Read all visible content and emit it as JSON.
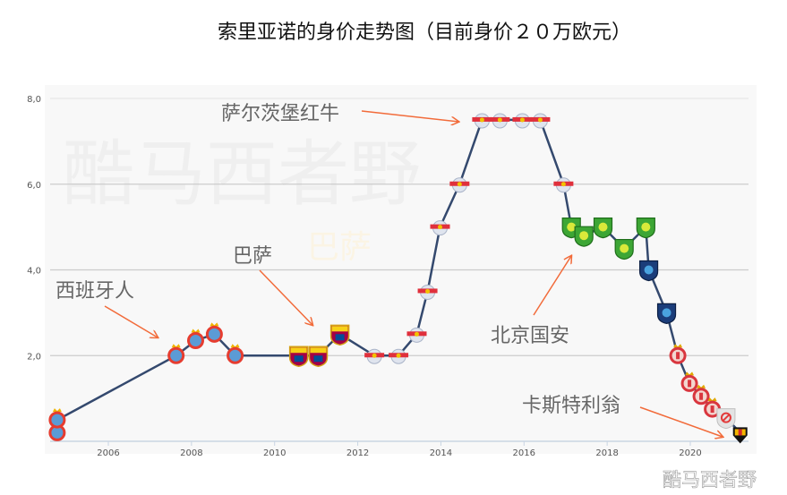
{
  "chart_data": {
    "type": "line",
    "title": "索里亚诺的身价走势图（目前身价２０万欧元）",
    "xlabel": "",
    "ylabel": "",
    "xlim": [
      2004.6,
      2021.4
    ],
    "ylim": [
      0,
      8
    ],
    "x_ticks": [
      "2006",
      "2008",
      "2010",
      "2012",
      "2014",
      "2016",
      "2018",
      "2020"
    ],
    "y_ticks": [
      "2,0",
      "4,0",
      "6,0",
      "8,0"
    ],
    "grid": true,
    "line_color": "#34496e",
    "points": [
      {
        "x": 2004.77,
        "y": 0.2,
        "club": "espanyol"
      },
      {
        "x": 2004.77,
        "y": 0.5,
        "club": "espanyol"
      },
      {
        "x": 2007.63,
        "y": 2.0,
        "club": "espanyol"
      },
      {
        "x": 2008.1,
        "y": 2.35,
        "club": "espanyol"
      },
      {
        "x": 2008.55,
        "y": 2.5,
        "club": "espanyol"
      },
      {
        "x": 2009.05,
        "y": 2.0,
        "club": "espanyol"
      },
      {
        "x": 2010.58,
        "y": 2.0,
        "club": "barcelona"
      },
      {
        "x": 2011.05,
        "y": 2.0,
        "club": "barcelona"
      },
      {
        "x": 2011.57,
        "y": 2.5,
        "club": "barcelona"
      },
      {
        "x": 2012.4,
        "y": 2.0,
        "club": "salzburg"
      },
      {
        "x": 2012.98,
        "y": 2.0,
        "club": "salzburg"
      },
      {
        "x": 2013.42,
        "y": 2.5,
        "club": "salzburg"
      },
      {
        "x": 2013.68,
        "y": 3.5,
        "club": "salzburg"
      },
      {
        "x": 2013.98,
        "y": 5.0,
        "club": "salzburg"
      },
      {
        "x": 2014.45,
        "y": 6.0,
        "club": "salzburg"
      },
      {
        "x": 2014.99,
        "y": 7.5,
        "club": "salzburg"
      },
      {
        "x": 2015.42,
        "y": 7.5,
        "club": "salzburg"
      },
      {
        "x": 2015.96,
        "y": 7.5,
        "club": "salzburg"
      },
      {
        "x": 2016.39,
        "y": 7.5,
        "club": "salzburg"
      },
      {
        "x": 2016.95,
        "y": 6.0,
        "club": "salzburg"
      },
      {
        "x": 2017.14,
        "y": 5.0,
        "club": "beijing"
      },
      {
        "x": 2017.44,
        "y": 4.8,
        "club": "beijing"
      },
      {
        "x": 2017.9,
        "y": 5.0,
        "club": "beijing"
      },
      {
        "x": 2018.41,
        "y": 4.5,
        "club": "beijing"
      },
      {
        "x": 2018.93,
        "y": 5.0,
        "club": "beijing"
      },
      {
        "x": 2019.0,
        "y": 4.0,
        "club": "alhilal"
      },
      {
        "x": 2019.43,
        "y": 3.0,
        "club": "alhilal"
      },
      {
        "x": 2019.7,
        "y": 2.0,
        "club": "girona"
      },
      {
        "x": 2019.98,
        "y": 1.35,
        "club": "girona"
      },
      {
        "x": 2020.26,
        "y": 1.05,
        "club": "girona"
      },
      {
        "x": 2020.53,
        "y": 0.75,
        "club": "girona"
      },
      {
        "x": 2020.86,
        "y": 0.55,
        "club": "none"
      },
      {
        "x": 2021.2,
        "y": 0.2,
        "club": "castellon"
      }
    ],
    "annotations": [
      {
        "text": "萨尔茨堡红牛",
        "club": "salzburg"
      },
      {
        "text": "巴萨",
        "club": "barcelona"
      },
      {
        "text": "西班牙人",
        "club": "espanyol"
      },
      {
        "text": "北京国安",
        "club": "beijing"
      },
      {
        "text": "卡斯特利翁",
        "club": "castellon"
      }
    ],
    "annotation_color": "#f26b3a"
  },
  "watermarks": {
    "center": "酷马西者野",
    "faint": "巴萨",
    "corner": "酷马西者野"
  }
}
